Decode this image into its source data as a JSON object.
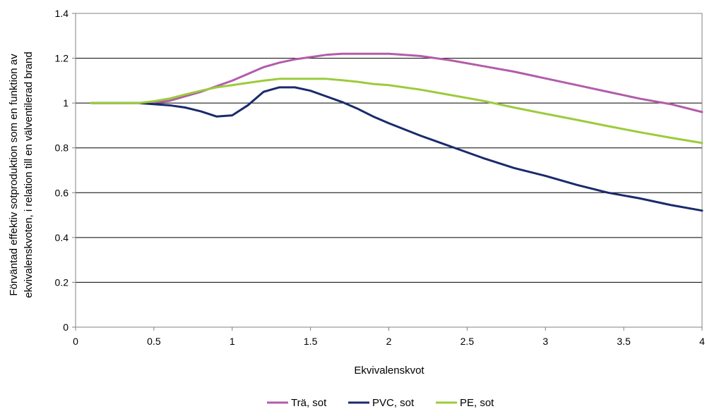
{
  "chart_data": {
    "type": "line",
    "xlabel": "Ekvivalenskvot",
    "ylabel_line1": "Förväntad effektiv sotproduktion som en funktion av",
    "ylabel_line2": "ekvivalenskvoten, i relation till en välventilerad brand",
    "xlim": [
      0,
      4
    ],
    "ylim": [
      0,
      1.4
    ],
    "x_ticks": [
      0,
      0.5,
      1,
      1.5,
      2,
      2.5,
      3,
      3.5,
      4
    ],
    "x_tick_labels": [
      "0",
      "0.5",
      "1",
      "1.5",
      "2",
      "2.5",
      "3",
      "3.5",
      "4"
    ],
    "y_ticks": [
      0,
      0.2,
      0.4,
      0.6,
      0.8,
      1,
      1.2,
      1.4
    ],
    "y_tick_labels": [
      "0",
      "0.2",
      "0.4",
      "0.6",
      "0.8",
      "1",
      "1.2",
      "1.4"
    ],
    "grid": "horizontal",
    "legend_position": "bottom-center",
    "series": [
      {
        "name": "Trä, sot",
        "color": "#B25CAA",
        "points": [
          [
            0.1,
            1.0
          ],
          [
            0.4,
            1.0
          ],
          [
            0.5,
            1.003
          ],
          [
            0.6,
            1.01
          ],
          [
            0.7,
            1.03
          ],
          [
            0.8,
            1.05
          ],
          [
            0.9,
            1.075
          ],
          [
            1.0,
            1.1
          ],
          [
            1.1,
            1.13
          ],
          [
            1.2,
            1.16
          ],
          [
            1.3,
            1.18
          ],
          [
            1.4,
            1.195
          ],
          [
            1.5,
            1.205
          ],
          [
            1.6,
            1.215
          ],
          [
            1.7,
            1.22
          ],
          [
            1.8,
            1.22
          ],
          [
            1.9,
            1.22
          ],
          [
            2.0,
            1.22
          ],
          [
            2.2,
            1.21
          ],
          [
            2.4,
            1.19
          ],
          [
            2.6,
            1.165
          ],
          [
            2.8,
            1.14
          ],
          [
            3.0,
            1.11
          ],
          [
            3.2,
            1.08
          ],
          [
            3.4,
            1.05
          ],
          [
            3.6,
            1.02
          ],
          [
            3.8,
            0.995
          ],
          [
            4.0,
            0.96
          ]
        ]
      },
      {
        "name": "PVC, sot",
        "color": "#1A2A6C",
        "points": [
          [
            0.1,
            1.0
          ],
          [
            0.4,
            1.0
          ],
          [
            0.5,
            0.995
          ],
          [
            0.6,
            0.99
          ],
          [
            0.7,
            0.98
          ],
          [
            0.8,
            0.963
          ],
          [
            0.9,
            0.94
          ],
          [
            1.0,
            0.945
          ],
          [
            1.1,
            0.99
          ],
          [
            1.2,
            1.05
          ],
          [
            1.3,
            1.07
          ],
          [
            1.4,
            1.07
          ],
          [
            1.5,
            1.055
          ],
          [
            1.6,
            1.03
          ],
          [
            1.7,
            1.005
          ],
          [
            1.8,
            0.975
          ],
          [
            1.9,
            0.94
          ],
          [
            2.0,
            0.91
          ],
          [
            2.2,
            0.855
          ],
          [
            2.4,
            0.805
          ],
          [
            2.6,
            0.755
          ],
          [
            2.8,
            0.71
          ],
          [
            3.0,
            0.675
          ],
          [
            3.2,
            0.635
          ],
          [
            3.4,
            0.6
          ],
          [
            3.6,
            0.575
          ],
          [
            3.8,
            0.545
          ],
          [
            4.0,
            0.52
          ]
        ]
      },
      {
        "name": "PE, sot",
        "color": "#9CCB3B",
        "points": [
          [
            0.1,
            1.0
          ],
          [
            0.4,
            1.0
          ],
          [
            0.5,
            1.008
          ],
          [
            0.6,
            1.02
          ],
          [
            0.7,
            1.038
          ],
          [
            0.8,
            1.055
          ],
          [
            0.9,
            1.07
          ],
          [
            1.0,
            1.08
          ],
          [
            1.1,
            1.09
          ],
          [
            1.2,
            1.1
          ],
          [
            1.3,
            1.108
          ],
          [
            1.4,
            1.108
          ],
          [
            1.5,
            1.108
          ],
          [
            1.6,
            1.108
          ],
          [
            1.7,
            1.102
          ],
          [
            1.8,
            1.095
          ],
          [
            1.9,
            1.085
          ],
          [
            2.0,
            1.08
          ],
          [
            2.2,
            1.06
          ],
          [
            2.4,
            1.035
          ],
          [
            2.6,
            1.01
          ],
          [
            2.8,
            0.98
          ],
          [
            3.0,
            0.952
          ],
          [
            3.2,
            0.925
          ],
          [
            3.4,
            0.897
          ],
          [
            3.6,
            0.87
          ],
          [
            3.8,
            0.845
          ],
          [
            4.0,
            0.822
          ]
        ]
      }
    ]
  }
}
